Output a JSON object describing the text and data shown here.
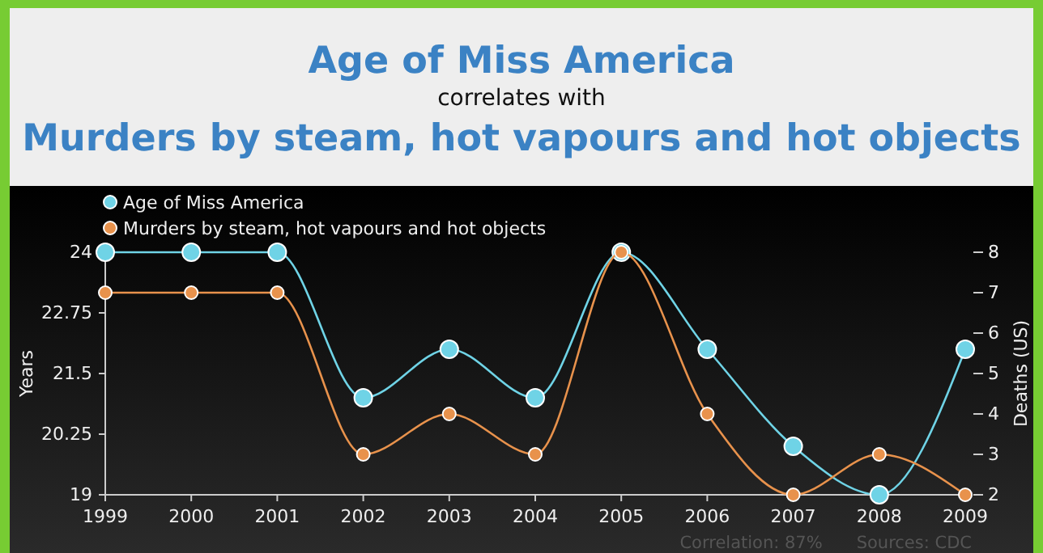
{
  "chart_data": {
    "type": "line",
    "title": "Age of Miss America",
    "subtitle": "correlates with",
    "annotations": [
      "Murders by steam, hot vapours and hot objects",
      "Correlation: 87%",
      "Sources: CDC"
    ],
    "x": [
      1999,
      2000,
      2001,
      2002,
      2003,
      2004,
      2005,
      2006,
      2007,
      2008,
      2009
    ],
    "xlim": [
      1999,
      2009
    ],
    "xticks": [
      1999,
      2000,
      2001,
      2002,
      2003,
      2004,
      2005,
      2006,
      2007,
      2008,
      2009
    ],
    "ylabel": "Years",
    "y2label": "Deaths (US)",
    "ylim": [
      19,
      24
    ],
    "yticks": [
      19,
      20.25,
      21.5,
      22.75,
      24
    ],
    "y2lim": [
      2,
      8
    ],
    "y2ticks": [
      2,
      3,
      4,
      5,
      6,
      7,
      8
    ],
    "series": [
      {
        "name": "Age of Miss America",
        "color": "#6fd3e6",
        "values": [
          24,
          24,
          24,
          21,
          22,
          21,
          24,
          22,
          20,
          19,
          22
        ]
      },
      {
        "name": "Murders by steam, hot vapours and hot objects",
        "color": "#e8924c",
        "axis": "y2",
        "values": [
          7,
          7,
          7,
          3,
          4,
          3,
          8,
          4,
          2,
          3,
          2
        ]
      }
    ],
    "marker": "circle",
    "legend": "top left",
    "grid": false
  }
}
